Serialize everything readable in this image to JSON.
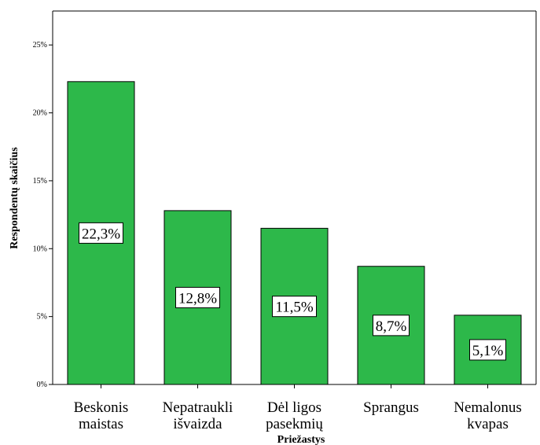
{
  "chart_data": {
    "type": "bar",
    "categories": [
      [
        "Beskonis",
        "maistas"
      ],
      [
        "Nepatraukli",
        "išvaizda"
      ],
      [
        "Dėl ligos",
        "pasekmių"
      ],
      [
        "Sprangus"
      ],
      [
        "Nemalonus",
        "kvapas"
      ]
    ],
    "values": [
      22.3,
      12.8,
      11.5,
      8.7,
      5.1
    ],
    "data_labels": [
      "22,3%",
      "12,8%",
      "11,5%",
      "8,7%",
      "5,1%"
    ],
    "xlabel": "Priežastys",
    "ylabel": "Respondentų skaičius",
    "ylim": [
      0,
      27.5
    ],
    "yticks": [
      0,
      5,
      10,
      15,
      20,
      25
    ],
    "ytick_labels": [
      "0%",
      "5%",
      "10%",
      "15%",
      "20%",
      "25%"
    ],
    "bar_color": "#2db84a",
    "grid": false
  }
}
